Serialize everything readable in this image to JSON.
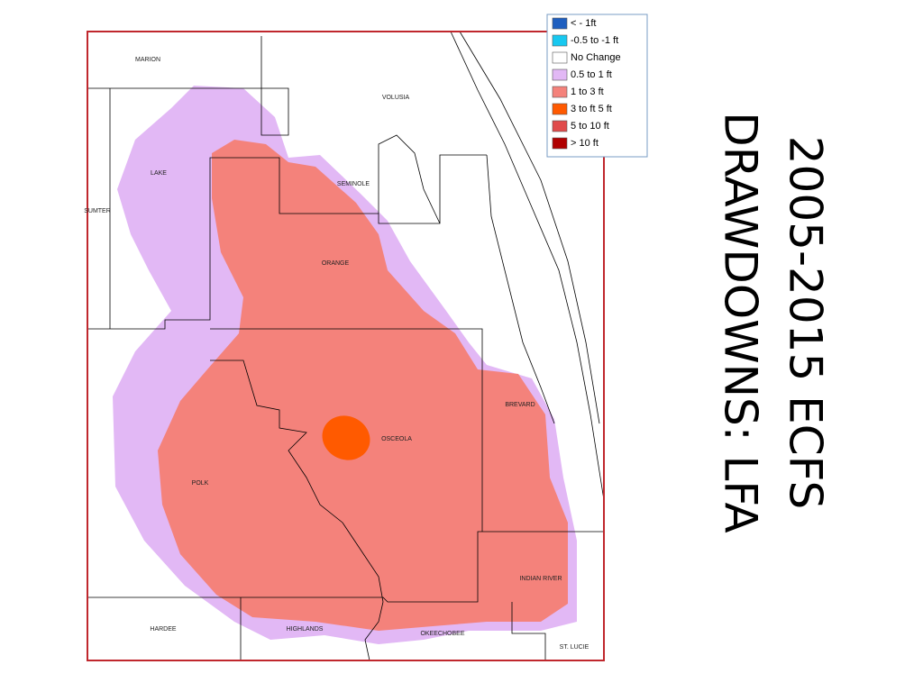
{
  "title": [
    "2005-2015 ECFS",
    "DRAWDOWNS: LFA"
  ],
  "legend": {
    "items": [
      {
        "label": "< - 1ft",
        "color": "#1f5fbf"
      },
      {
        "label": "-0.5 to -1 ft",
        "color": "#18c8f0"
      },
      {
        "label": "No Change",
        "color": "#ffffff"
      },
      {
        "label": "0.5 to 1 ft",
        "color": "#e2b8f5"
      },
      {
        "label": "1 to 3 ft",
        "color": "#f4827b"
      },
      {
        "label": "3 to ft 5 ft",
        "color": "#ff5a00"
      },
      {
        "label": "5 to 10 ft",
        "color": "#e04b4b"
      },
      {
        "label": "> 10 ft",
        "color": "#b00000"
      }
    ]
  },
  "counties": [
    "MARION",
    "VOLUSIA",
    "LAKE",
    "SEMINOLE",
    "SUMTER",
    "ORANGE",
    "BREVARD",
    "OSCEOLA",
    "POLK",
    "INDIAN RIVER",
    "HARDEE",
    "HIGHLANDS",
    "OKEECHOBEE",
    "ST. LUCIE"
  ]
}
